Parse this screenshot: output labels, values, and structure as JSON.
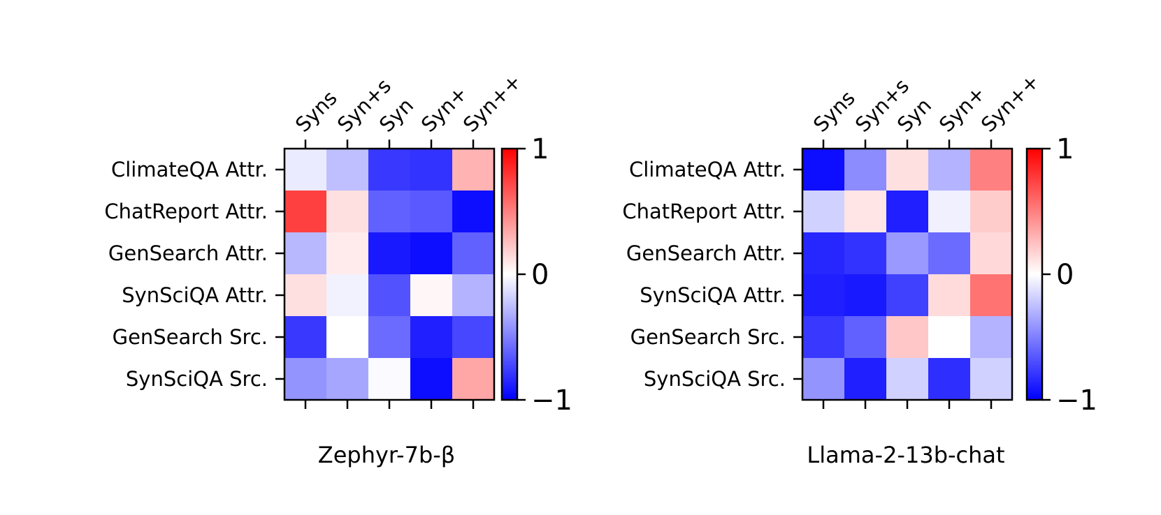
{
  "chart_data": [
    {
      "type": "heatmap",
      "title": "Zephyr-7b-β",
      "columns": [
        "Syns",
        "Syn+s",
        "Syn",
        "Syn+",
        "Syn++"
      ],
      "rows": [
        "ClimateQA Attr.",
        "ChatReport Attr.",
        "GenSearch Attr.",
        "SynSciQA Attr.",
        "GenSearch Src.",
        "SynSciQA Src."
      ],
      "values": [
        [
          -0.08,
          -0.25,
          -0.78,
          -0.8,
          0.3
        ],
        [
          0.75,
          0.12,
          -0.62,
          -0.65,
          -0.95
        ],
        [
          -0.28,
          0.08,
          -0.9,
          -0.95,
          -0.62
        ],
        [
          0.12,
          -0.05,
          -0.68,
          0.03,
          -0.3
        ],
        [
          -0.78,
          0.0,
          -0.58,
          -0.88,
          -0.72
        ],
        [
          -0.42,
          -0.35,
          -0.02,
          -0.95,
          0.35
        ]
      ],
      "vmin": -1,
      "vmax": 1,
      "colormap": "bwr",
      "colorbar_ticks": [
        "1",
        "0",
        "−1"
      ]
    },
    {
      "type": "heatmap",
      "title": "Llama-2-13b-chat",
      "columns": [
        "Syns",
        "Syn+s",
        "Syn",
        "Syn+",
        "Syn++"
      ],
      "rows": [
        "ClimateQA Attr.",
        "ChatReport Attr.",
        "GenSearch Attr.",
        "SynSciQA Attr.",
        "GenSearch Src.",
        "SynSciQA Src."
      ],
      "values": [
        [
          -0.95,
          -0.45,
          0.12,
          -0.3,
          0.5
        ],
        [
          -0.18,
          0.1,
          -0.88,
          -0.06,
          0.2
        ],
        [
          -0.85,
          -0.8,
          -0.4,
          -0.58,
          0.15
        ],
        [
          -0.88,
          -0.9,
          -0.75,
          0.14,
          0.55
        ],
        [
          -0.78,
          -0.62,
          0.22,
          0.0,
          -0.3
        ],
        [
          -0.42,
          -0.88,
          -0.18,
          -0.82,
          -0.18
        ]
      ],
      "vmin": -1,
      "vmax": 1,
      "colormap": "bwr",
      "colorbar_ticks": [
        "1",
        "0",
        "−1"
      ]
    }
  ]
}
